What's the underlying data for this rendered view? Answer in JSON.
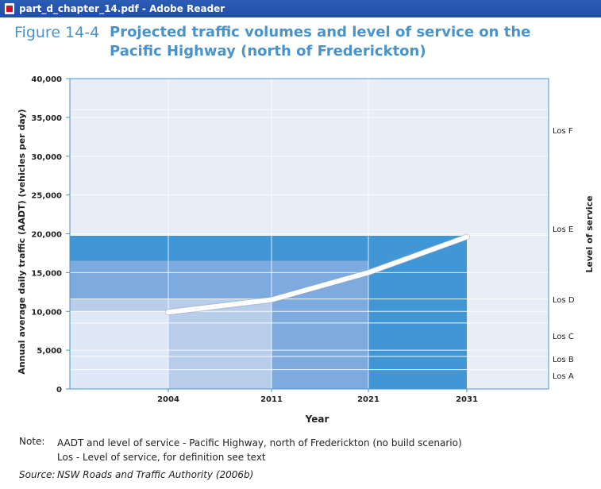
{
  "window": {
    "title": "part_d_chapter_14.pdf - Adobe Reader"
  },
  "figure": {
    "label": "Figure 14-4",
    "title": "Projected traffic volumes and level of service on the Pacific Highway (north of Frederickton)"
  },
  "chart_data": {
    "type": "line",
    "ylabel": "Annual average daily traffic (AADT) (vehicles per day)",
    "xlabel": "Year",
    "y2label": "Level of service",
    "ylim": [
      0,
      40000
    ],
    "yticks": [
      0,
      5000,
      10000,
      15000,
      20000,
      25000,
      30000,
      35000,
      40000
    ],
    "ytick_labels": [
      "0",
      "5,000",
      "10,000",
      "15,000",
      "20,000",
      "25,000",
      "30,000",
      "35,000",
      "40,000"
    ],
    "categories": [
      "2004",
      "2011",
      "2021",
      "2031"
    ],
    "series": [
      {
        "values": [
          9900,
          11500,
          15000,
          19600
        ]
      }
    ],
    "los_levels": [
      {
        "label": "Los A",
        "threshold": 2500
      },
      {
        "label": "Los B",
        "threshold": 4200
      },
      {
        "label": "Los C",
        "threshold": 8500
      },
      {
        "label": "Los D",
        "threshold": 11600
      },
      {
        "label": "Los E",
        "threshold": 19800
      },
      {
        "label": "Los F",
        "threshold": 36000
      }
    ],
    "grid": true,
    "colors": {
      "background": "#e8eef8",
      "band_fill": "#4197d6",
      "col1_light": "#dfe8f6",
      "col1_mid": "#b8cdea",
      "col1_dark": "#7daadf",
      "col2_light": "#b8cdea",
      "col2_dark": "#7daadf",
      "col3": "#7daadf",
      "col4": "#4197d6",
      "line": "#ffffff",
      "axis": "#4a93c9"
    }
  },
  "note": {
    "label": "Note:",
    "line1": "AADT and level of service - Pacific Highway, north of Frederickton (no build scenario)",
    "line2": "Los - Level of service, for definition see text"
  },
  "source": {
    "label": "Source:",
    "text": "NSW Roads and Traffic Authority (2006b)"
  }
}
